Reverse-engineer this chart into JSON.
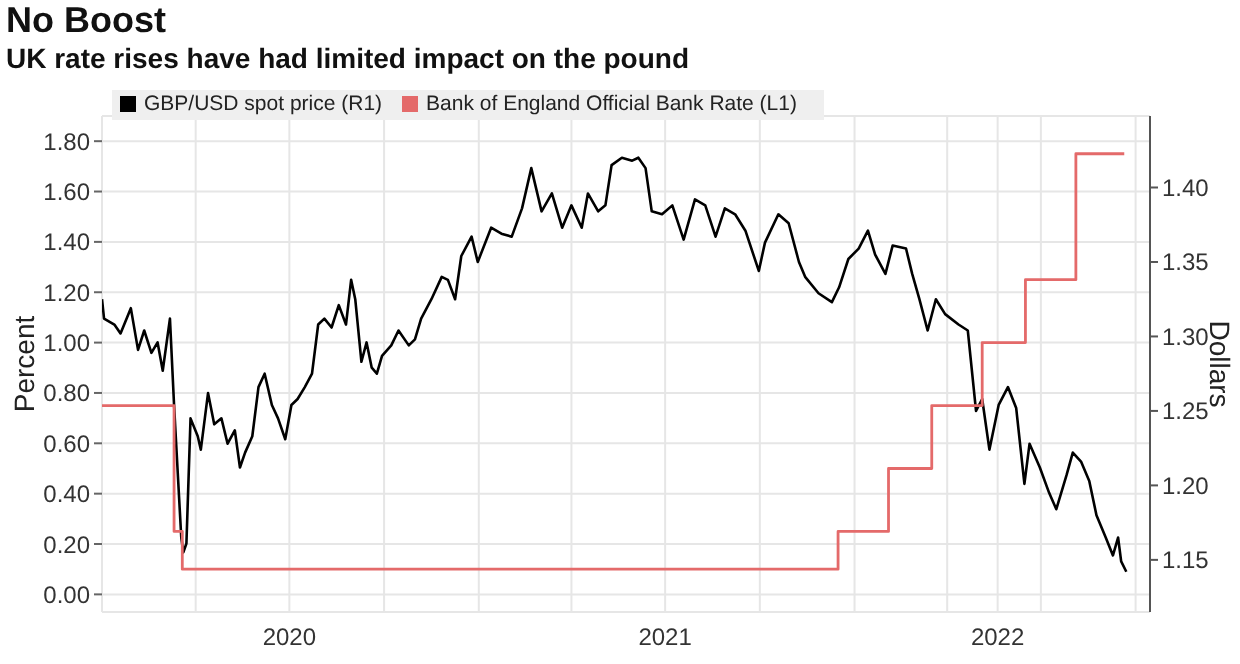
{
  "chart_data": {
    "type": "line",
    "title": "No Boost",
    "subtitle": "UK rate rises have had limited impact on the pound",
    "ylabel": "Percent",
    "y2label": "Dollars",
    "xlim": [
      "2020-01-01",
      "2022-10-15"
    ],
    "xticks": [
      {
        "value": "2020-01-01",
        "label": null
      },
      {
        "value": "2020-04-01",
        "label": null
      },
      {
        "value": "2020-07-01",
        "label": "2020"
      },
      {
        "value": "2020-10-01",
        "label": null
      },
      {
        "value": "2021-01-01",
        "label": null
      },
      {
        "value": "2021-04-01",
        "label": null
      },
      {
        "value": "2021-07-01",
        "label": "2021"
      },
      {
        "value": "2021-10-01",
        "label": null
      },
      {
        "value": "2022-01-01",
        "label": null
      },
      {
        "value": "2022-04-01",
        "label": null
      },
      {
        "value": "2022-05-20",
        "label": "2022"
      },
      {
        "value": "2022-07-01",
        "label": null
      },
      {
        "value": "2022-10-01",
        "label": null
      }
    ],
    "ylim": [
      -0.07,
      1.9
    ],
    "yticks": [
      {
        "value": 0,
        "label": "0.00"
      },
      {
        "value": 0.2,
        "label": "0.20"
      },
      {
        "value": 0.4,
        "label": "0.40"
      },
      {
        "value": 0.6,
        "label": "0.60"
      },
      {
        "value": 0.8,
        "label": "0.80"
      },
      {
        "value": 1,
        "label": "1.00"
      },
      {
        "value": 1.2,
        "label": "1.20"
      },
      {
        "value": 1.4,
        "label": "1.40"
      },
      {
        "value": 1.6,
        "label": "1.60"
      },
      {
        "value": 1.8,
        "label": "1.80"
      }
    ],
    "y2lim": [
      1.115,
      1.448
    ],
    "y2ticks": [
      1.15,
      {
        "value": 1.2,
        "label": "1.20"
      },
      1.25,
      {
        "value": 1.3,
        "label": "1.30"
      },
      1.35,
      {
        "value": 1.4,
        "label": "1.40"
      }
    ],
    "grid": true,
    "legend": "top left",
    "marker": "none",
    "series": [
      {
        "name": "GBP/USD spot price (R1)",
        "color": "#000000",
        "axis": "y2",
        "x": [
          "2020-01-01",
          "2020-01-03",
          "2020-01-13",
          "2020-01-19",
          "2020-01-29",
          "2020-02-05",
          "2020-02-11",
          "2020-02-18",
          "2020-02-24",
          "2020-02-29",
          "2020-03-07",
          "2020-03-11",
          "2020-03-18",
          "2020-03-20",
          "2020-03-23",
          "2020-03-27",
          "2020-04-03",
          "2020-04-06",
          "2020-04-13",
          "2020-04-19",
          "2020-04-26",
          "2020-05-02",
          "2020-05-09",
          "2020-05-14",
          "2020-05-19",
          "2020-05-26",
          "2020-06-01",
          "2020-06-07",
          "2020-06-14",
          "2020-06-20",
          "2020-06-27",
          "2020-07-03",
          "2020-07-09",
          "2020-07-16",
          "2020-07-23",
          "2020-07-29",
          "2020-08-04",
          "2020-08-11",
          "2020-08-18",
          "2020-08-25",
          "2020-08-30",
          "2020-09-03",
          "2020-09-09",
          "2020-09-14",
          "2020-09-19",
          "2020-09-24",
          "2020-09-29",
          "2020-10-08",
          "2020-10-15",
          "2020-10-25",
          "2020-10-31",
          "2020-11-06",
          "2020-11-16",
          "2020-11-26",
          "2020-12-02",
          "2020-12-09",
          "2020-12-15",
          "2020-12-25",
          "2020-12-31",
          "2021-01-13",
          "2021-01-23",
          "2021-02-02",
          "2021-02-12",
          "2021-02-21",
          "2021-03-03",
          "2021-03-13",
          "2021-03-23",
          "2021-04-01",
          "2021-04-11",
          "2021-04-17",
          "2021-04-27",
          "2021-05-04",
          "2021-05-10",
          "2021-05-20",
          "2021-05-30",
          "2021-06-05",
          "2021-06-12",
          "2021-06-18",
          "2021-06-28",
          "2021-07-08",
          "2021-07-19",
          "2021-07-30",
          "2021-08-09",
          "2021-08-19",
          "2021-08-28",
          "2021-09-07",
          "2021-09-17",
          "2021-09-30",
          "2021-10-06",
          "2021-10-19",
          "2021-10-29",
          "2021-11-08",
          "2021-11-14",
          "2021-11-27",
          "2021-12-10",
          "2021-12-17",
          "2021-12-26",
          "2022-01-05",
          "2022-01-14",
          "2022-01-21",
          "2022-01-31",
          "2022-02-07",
          "2022-02-20",
          "2022-02-26",
          "2022-03-05",
          "2022-03-13",
          "2022-03-21",
          "2022-03-30",
          "2022-04-12",
          "2022-04-21",
          "2022-04-29",
          "2022-05-05",
          "2022-05-12",
          "2022-05-21",
          "2022-05-30",
          "2022-06-07",
          "2022-06-15",
          "2022-06-20",
          "2022-06-30",
          "2022-07-09",
          "2022-07-16",
          "2022-07-26",
          "2022-08-01",
          "2022-08-09",
          "2022-08-17",
          "2022-08-24",
          "2022-09-02",
          "2022-09-09",
          "2022-09-14",
          "2022-09-17",
          "2022-09-22"
        ],
        "values": [
          1.325,
          1.312,
          1.308,
          1.302,
          1.319,
          1.291,
          1.304,
          1.289,
          1.296,
          1.277,
          1.312,
          1.254,
          1.165,
          1.155,
          1.161,
          1.245,
          1.233,
          1.224,
          1.262,
          1.241,
          1.245,
          1.228,
          1.237,
          1.212,
          1.222,
          1.233,
          1.266,
          1.275,
          1.254,
          1.245,
          1.231,
          1.254,
          1.258,
          1.266,
          1.275,
          1.308,
          1.312,
          1.306,
          1.321,
          1.308,
          1.338,
          1.325,
          1.283,
          1.296,
          1.279,
          1.275,
          1.287,
          1.294,
          1.304,
          1.294,
          1.298,
          1.312,
          1.325,
          1.34,
          1.338,
          1.325,
          1.354,
          1.367,
          1.35,
          1.373,
          1.369,
          1.367,
          1.386,
          1.413,
          1.384,
          1.396,
          1.373,
          1.388,
          1.373,
          1.396,
          1.384,
          1.388,
          1.415,
          1.42,
          1.418,
          1.42,
          1.413,
          1.384,
          1.382,
          1.388,
          1.365,
          1.392,
          1.388,
          1.367,
          1.386,
          1.382,
          1.371,
          1.344,
          1.363,
          1.382,
          1.376,
          1.35,
          1.34,
          1.329,
          1.323,
          1.333,
          1.352,
          1.359,
          1.371,
          1.355,
          1.342,
          1.361,
          1.359,
          1.342,
          1.325,
          1.304,
          1.325,
          1.315,
          1.308,
          1.304,
          1.25,
          1.258,
          1.224,
          1.254,
          1.266,
          1.252,
          1.201,
          1.228,
          1.212,
          1.195,
          1.184,
          1.207,
          1.222,
          1.216,
          1.203,
          1.18,
          1.165,
          1.153,
          1.165,
          1.149,
          1.142
        ]
      },
      {
        "name": "Bank of England Official Bank Rate (L1)",
        "color": "#e46a6a",
        "type": "step",
        "x": [
          "2020-01-01",
          "2020-03-11",
          "2020-03-19",
          "2021-12-16",
          "2022-02-03",
          "2022-03-17",
          "2022-05-05",
          "2022-06-16",
          "2022-08-04",
          "2022-09-20"
        ],
        "values": [
          0.75,
          0.25,
          0.1,
          0.25,
          0.5,
          0.75,
          1.0,
          1.25,
          1.75,
          1.75
        ]
      }
    ]
  }
}
